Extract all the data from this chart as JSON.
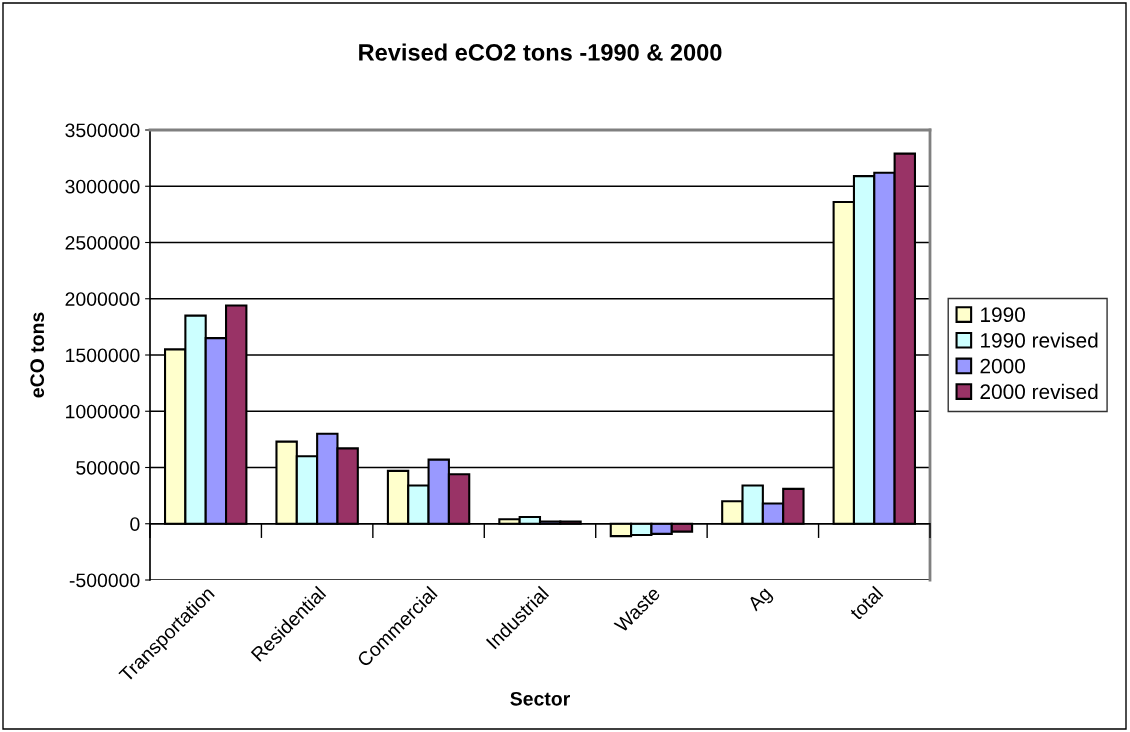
{
  "chart_data": {
    "type": "bar",
    "title": "Revised eCO2 tons -1990 & 2000",
    "xlabel": "Sector",
    "ylabel": "eCO tons",
    "categories": [
      "Transportation",
      "Residential",
      "Commercial",
      "Industrial",
      "Waste",
      "Ag",
      "total"
    ],
    "series": [
      {
        "name": "1990",
        "color": "#ffffcc",
        "values": [
          1550000,
          730000,
          470000,
          40000,
          -110000,
          200000,
          2860000
        ]
      },
      {
        "name": "1990 revised",
        "color": "#ccffff",
        "values": [
          1850000,
          600000,
          340000,
          60000,
          -100000,
          340000,
          3090000
        ]
      },
      {
        "name": "2000",
        "color": "#9999ff",
        "values": [
          1650000,
          800000,
          570000,
          20000,
          -90000,
          180000,
          3120000
        ]
      },
      {
        "name": "2000 revised",
        "color": "#993366",
        "values": [
          1940000,
          670000,
          440000,
          20000,
          -70000,
          310000,
          3290000
        ]
      }
    ],
    "ylim": [
      -500000,
      3500000
    ],
    "yticks": [
      -500000,
      0,
      500000,
      1000000,
      1500000,
      2000000,
      2500000,
      3000000,
      3500000
    ],
    "grid": "y",
    "legend": "right"
  }
}
